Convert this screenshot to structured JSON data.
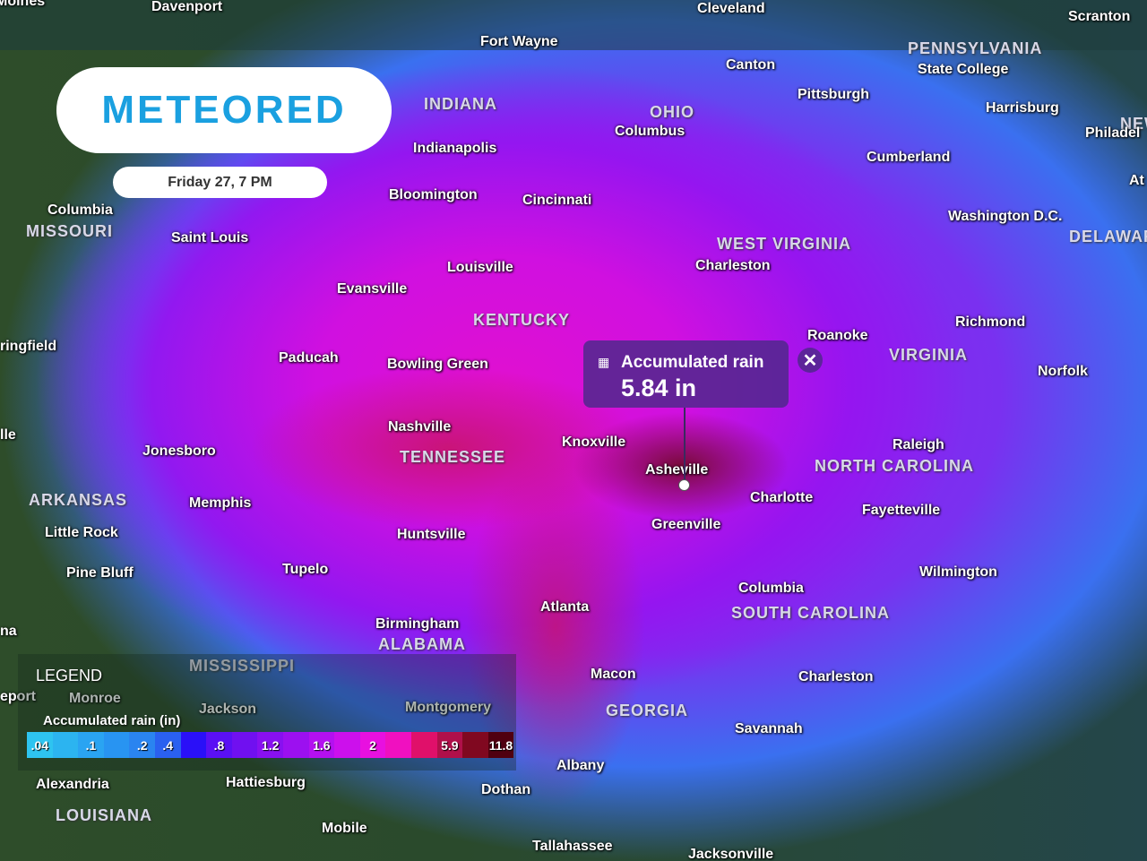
{
  "brand": {
    "logo_text": "METEORED"
  },
  "time": {
    "label": "Friday 27, 7 PM"
  },
  "popup": {
    "title": "Accumulated rain",
    "value": "5.84 in",
    "icon": "rain-gauge-icon"
  },
  "legend": {
    "title": "LEGEND",
    "subtitle": "Accumulated rain (in)",
    "segments": [
      {
        "label": ".04",
        "color": "#2ec4f0"
      },
      {
        "label": "",
        "color": "#2cb4f0"
      },
      {
        "label": ".1",
        "color": "#2aa4f2"
      },
      {
        "label": "",
        "color": "#2894f2"
      },
      {
        "label": ".2",
        "color": "#2a84f0"
      },
      {
        "label": ".4",
        "color": "#2a60f0"
      },
      {
        "label": "",
        "color": "#2a10f8"
      },
      {
        "label": ".8",
        "color": "#5a10f4"
      },
      {
        "label": "",
        "color": "#7010f0"
      },
      {
        "label": "1.2",
        "color": "#8810f0"
      },
      {
        "label": "",
        "color": "#9c10f0"
      },
      {
        "label": "1.6",
        "color": "#b410f0"
      },
      {
        "label": "",
        "color": "#cc10ec"
      },
      {
        "label": "2",
        "color": "#e810e0"
      },
      {
        "label": "",
        "color": "#f010c0"
      },
      {
        "label": "",
        "color": "#e0106a"
      },
      {
        "label": "5.9",
        "color": "#b0104a"
      },
      {
        "label": "",
        "color": "#800820"
      },
      {
        "label": "11.8",
        "color": "#500010"
      }
    ]
  },
  "states": [
    {
      "name": "INDIANA"
    },
    {
      "name": "OHIO"
    },
    {
      "name": "PENNSYLVANIA"
    },
    {
      "name": "MISSOURI"
    },
    {
      "name": "WEST VIRGINIA"
    },
    {
      "name": "KENTUCKY"
    },
    {
      "name": "VIRGINIA"
    },
    {
      "name": "DELAWARE"
    },
    {
      "name": "TENNESSEE"
    },
    {
      "name": "NORTH CAROLINA"
    },
    {
      "name": "ARKANSAS"
    },
    {
      "name": "SOUTH CAROLINA"
    },
    {
      "name": "ALABAMA"
    },
    {
      "name": "MISSISSIPPI"
    },
    {
      "name": "GEORGIA"
    },
    {
      "name": "LOUISIANA"
    },
    {
      "name": "NEW"
    }
  ],
  "cities": [
    {
      "name": "Moines"
    },
    {
      "name": "Davenport"
    },
    {
      "name": "Cleveland"
    },
    {
      "name": "Scranton"
    },
    {
      "name": "Fort Wayne"
    },
    {
      "name": "Canton"
    },
    {
      "name": "State College"
    },
    {
      "name": "Pittsburgh"
    },
    {
      "name": "Harrisburg"
    },
    {
      "name": "Philadel"
    },
    {
      "name": "Columbus"
    },
    {
      "name": "Indianapolis"
    },
    {
      "name": "Cumberland"
    },
    {
      "name": "Bloomington"
    },
    {
      "name": "Cincinnati"
    },
    {
      "name": "At"
    },
    {
      "name": "Columbia"
    },
    {
      "name": "Washington D.C."
    },
    {
      "name": "Saint Louis"
    },
    {
      "name": "Charleston"
    },
    {
      "name": "Louisville"
    },
    {
      "name": "Evansville"
    },
    {
      "name": "Richmond"
    },
    {
      "name": "Roanoke"
    },
    {
      "name": "ringfield"
    },
    {
      "name": "Paducah"
    },
    {
      "name": "Bowling Green"
    },
    {
      "name": "Norfolk"
    },
    {
      "name": "Nashville"
    },
    {
      "name": "lle"
    },
    {
      "name": "Knoxville"
    },
    {
      "name": "Jonesboro"
    },
    {
      "name": "Raleigh"
    },
    {
      "name": "Asheville"
    },
    {
      "name": "Charlotte"
    },
    {
      "name": "Memphis"
    },
    {
      "name": "Fayetteville"
    },
    {
      "name": "Greenville"
    },
    {
      "name": "Little Rock"
    },
    {
      "name": "Huntsville"
    },
    {
      "name": "Tupelo"
    },
    {
      "name": "Pine Bluff"
    },
    {
      "name": "Wilmington"
    },
    {
      "name": "Columbia"
    },
    {
      "name": "Atlanta"
    },
    {
      "name": "Birmingham"
    },
    {
      "name": "na"
    },
    {
      "name": "Macon"
    },
    {
      "name": "Charleston"
    },
    {
      "name": "eport"
    },
    {
      "name": "Monroe"
    },
    {
      "name": "Montgomery"
    },
    {
      "name": "Jackson"
    },
    {
      "name": "Savannah"
    },
    {
      "name": "Albany"
    },
    {
      "name": "Alexandria"
    },
    {
      "name": "Hattiesburg"
    },
    {
      "name": "Dothan"
    },
    {
      "name": "Mobile"
    },
    {
      "name": "Tallahassee"
    },
    {
      "name": "Jacksonville"
    }
  ]
}
